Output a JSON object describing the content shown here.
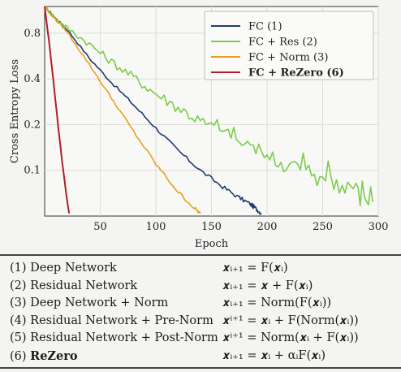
{
  "chart_data": {
    "type": "line",
    "title": "",
    "xlabel": "Epoch",
    "ylabel": "Cross Entropy Loss",
    "xlim": [
      0,
      300
    ],
    "ylim": [
      0.05,
      1.2
    ],
    "yscale": "log",
    "xticks": [
      "50",
      "100",
      "150",
      "200",
      "250",
      "300"
    ],
    "yticks": [
      "0.1",
      "0.2",
      "0.4",
      "0.8"
    ],
    "legend_position": "top-right",
    "series": [
      {
        "name": "FC (1)",
        "color": "#1f3b6e",
        "x": [
          0,
          10,
          20,
          40,
          60,
          80,
          100,
          120,
          140,
          160,
          175,
          185,
          190,
          195
        ],
        "y": [
          1.2,
          1.0,
          0.85,
          0.55,
          0.38,
          0.27,
          0.19,
          0.135,
          0.1,
          0.078,
          0.066,
          0.06,
          0.056,
          0.052
        ]
      },
      {
        "name": "FC + Res (2)",
        "color": "#7ccc4a",
        "x": [
          0,
          10,
          20,
          40,
          60,
          80,
          100,
          120,
          140,
          160,
          180,
          200,
          220,
          240,
          260,
          280,
          295
        ],
        "y": [
          1.2,
          1.0,
          0.87,
          0.68,
          0.52,
          0.41,
          0.32,
          0.26,
          0.21,
          0.175,
          0.145,
          0.125,
          0.11,
          0.095,
          0.08,
          0.068,
          0.062
        ]
      },
      {
        "name": "FC + Norm (3)",
        "color": "#e8a020",
        "x": [
          0,
          10,
          20,
          40,
          60,
          80,
          100,
          120,
          135,
          140
        ],
        "y": [
          1.2,
          0.98,
          0.82,
          0.5,
          0.3,
          0.18,
          0.11,
          0.072,
          0.056,
          0.052
        ]
      },
      {
        "name": "FC + ReZero (6)",
        "color": "#b01e28",
        "x": [
          0,
          4,
          8,
          12,
          16,
          20,
          22
        ],
        "y": [
          1.2,
          0.7,
          0.38,
          0.2,
          0.11,
          0.065,
          0.052
        ]
      }
    ]
  },
  "table": {
    "rows": [
      {
        "name": "(1) Deep Network",
        "formula": "𝒙ᵢ₊₁ = F(𝒙ᵢ)",
        "bold": false
      },
      {
        "name": "(2) Residual Network",
        "formula": "𝒙ᵢ₊₁ = 𝒙 + F(𝒙ᵢ)",
        "bold": false
      },
      {
        "name": "(3) Deep Network + Norm",
        "formula": "𝒙ᵢ₊₁ = Norm(F(𝒙ᵢ))",
        "bold": false
      },
      {
        "name": "(4) Residual Network + Pre-Norm",
        "formula": "𝒙ⁱ⁺¹ = 𝒙ᵢ + F(Norm(𝒙ᵢ))",
        "bold": false
      },
      {
        "name": "(5) Residual Network + Post-Norm",
        "formula": "𝒙ⁱ⁺¹ = Norm(𝒙ᵢ + F(𝒙ᵢ))",
        "bold": false
      },
      {
        "name": "(6) ",
        "name_bold": "ReZero",
        "formula": "𝒙ᵢ₊₁ = 𝒙ᵢ + αᵢF(𝒙ᵢ)",
        "bold": true
      }
    ]
  }
}
